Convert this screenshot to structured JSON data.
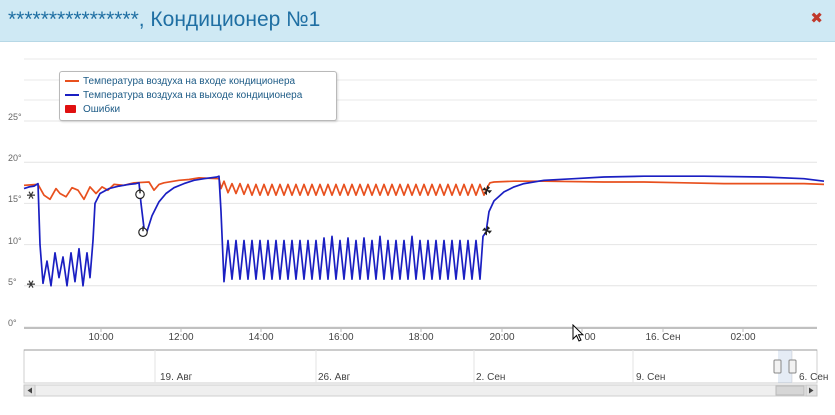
{
  "window": {
    "title": "****************, Кондиционер №1",
    "close_icon": "close-icon",
    "accent": "#1f6fa3",
    "header_bg": "#cfe9f4"
  },
  "legend": {
    "items": [
      {
        "label": "Температура воздуха на входе кондиционера",
        "color": "#e8501e",
        "kind": "line"
      },
      {
        "label": "Температура воздуха на выходе кондиционера",
        "color": "#1a1fc2",
        "kind": "line"
      },
      {
        "label": "Ошибки",
        "color": "#e01010",
        "kind": "box"
      }
    ]
  },
  "chart_data": {
    "type": "line",
    "y_ticks": [
      "0°",
      "5°",
      "10°",
      "15°",
      "20°",
      "25°"
    ],
    "ylim": [
      0,
      25
    ],
    "x_ticks": [
      "10:00",
      "12:00",
      "14:00",
      "16:00",
      "18:00",
      "20:00",
      "00",
      "16. Сен",
      "02:00"
    ],
    "series": [
      {
        "name": "Температура воздуха на входе кондиционера",
        "color": "#e8501e",
        "points": [
          [
            0,
            17.2
          ],
          [
            1.4,
            17.3
          ],
          [
            2,
            16.0
          ],
          [
            2.6,
            15.5
          ],
          [
            3.2,
            16.8
          ],
          [
            3.6,
            16.2
          ],
          [
            4.2,
            15.8
          ],
          [
            4.8,
            16.9
          ],
          [
            5.4,
            16.6
          ],
          [
            6,
            15.5
          ],
          [
            6.6,
            17.0
          ],
          [
            7.2,
            16.2
          ],
          [
            7.8,
            17.0
          ],
          [
            8.4,
            16.6
          ],
          [
            9,
            17.3
          ],
          [
            10,
            17.2
          ],
          [
            11,
            17.5
          ],
          [
            12.5,
            17.6
          ],
          [
            13,
            16.6
          ],
          [
            13.5,
            17.3
          ],
          [
            14,
            17.5
          ],
          [
            15.5,
            17.8
          ],
          [
            16.5,
            17.9
          ],
          [
            17.5,
            18.1
          ],
          [
            19.5,
            18.0
          ],
          [
            19.7,
            16.8
          ],
          [
            20,
            17.7
          ],
          [
            20.4,
            16.3
          ],
          [
            20.8,
            17.4
          ],
          [
            21.2,
            16.2
          ],
          [
            21.6,
            17.4
          ],
          [
            22,
            16.1
          ],
          [
            22.4,
            17.3
          ],
          [
            22.8,
            16.0
          ],
          [
            23.2,
            17.3
          ],
          [
            23.6,
            16.0
          ],
          [
            24,
            17.3
          ],
          [
            24.4,
            16.0
          ],
          [
            24.8,
            17.3
          ],
          [
            25.2,
            16.0
          ],
          [
            25.6,
            17.3
          ],
          [
            26,
            16.0
          ],
          [
            26.4,
            17.3
          ],
          [
            26.8,
            16.0
          ],
          [
            27.2,
            17.3
          ],
          [
            27.6,
            16.0
          ],
          [
            28,
            17.3
          ],
          [
            28.4,
            16.0
          ],
          [
            28.8,
            17.3
          ],
          [
            29.2,
            16.0
          ],
          [
            29.6,
            17.3
          ],
          [
            30,
            16.0
          ],
          [
            30.4,
            17.3
          ],
          [
            30.8,
            16.0
          ],
          [
            31.2,
            17.3
          ],
          [
            31.6,
            16.0
          ],
          [
            32,
            17.3
          ],
          [
            32.4,
            16.0
          ],
          [
            32.8,
            17.3
          ],
          [
            33.2,
            16.0
          ],
          [
            33.6,
            17.3
          ],
          [
            34,
            16.0
          ],
          [
            34.4,
            17.3
          ],
          [
            34.8,
            16.0
          ],
          [
            35.2,
            17.3
          ],
          [
            35.6,
            16.0
          ],
          [
            36,
            17.3
          ],
          [
            36.4,
            16.0
          ],
          [
            36.8,
            17.3
          ],
          [
            37.2,
            16.0
          ],
          [
            37.6,
            17.3
          ],
          [
            38,
            16.0
          ],
          [
            38.4,
            17.3
          ],
          [
            38.8,
            16.0
          ],
          [
            39.2,
            17.3
          ],
          [
            39.6,
            16.0
          ],
          [
            40,
            17.3
          ],
          [
            40.4,
            16.0
          ],
          [
            40.8,
            17.3
          ],
          [
            41.2,
            16.0
          ],
          [
            41.6,
            17.3
          ],
          [
            42,
            16.0
          ],
          [
            42.4,
            17.3
          ],
          [
            42.8,
            16.0
          ],
          [
            43.2,
            17.3
          ],
          [
            43.6,
            16.0
          ],
          [
            44,
            17.3
          ],
          [
            44.4,
            16.0
          ],
          [
            44.8,
            17.3
          ],
          [
            45.2,
            16.0
          ],
          [
            45.6,
            17.3
          ],
          [
            46,
            16.0
          ],
          [
            46.3,
            16.9
          ],
          [
            46.6,
            17.5
          ],
          [
            47,
            17.6
          ],
          [
            49,
            17.7
          ],
          [
            52,
            17.7
          ],
          [
            58,
            17.6
          ],
          [
            62,
            17.6
          ],
          [
            66,
            17.5
          ],
          [
            70,
            17.4
          ],
          [
            74,
            17.4
          ],
          [
            78,
            17.4
          ],
          [
            80,
            17.3
          ]
        ]
      },
      {
        "name": "Температура воздуха на выходе кондиционера",
        "color": "#1a1fc2",
        "points": [
          [
            0,
            16.8
          ],
          [
            0.5,
            17.0
          ],
          [
            1,
            17.1
          ],
          [
            1.4,
            17.4
          ],
          [
            1.6,
            10.0
          ],
          [
            1.9,
            5.3
          ],
          [
            2.3,
            8.0
          ],
          [
            2.7,
            5.0
          ],
          [
            3.1,
            9.0
          ],
          [
            3.5,
            6.0
          ],
          [
            3.9,
            8.5
          ],
          [
            4.3,
            5.0
          ],
          [
            4.7,
            9.0
          ],
          [
            5.1,
            5.5
          ],
          [
            5.5,
            9.5
          ],
          [
            5.9,
            5.0
          ],
          [
            6.3,
            9.0
          ],
          [
            6.6,
            6.0
          ],
          [
            6.9,
            10.5
          ],
          [
            7.1,
            15.0
          ],
          [
            7.6,
            16.2
          ],
          [
            8.5,
            16.8
          ],
          [
            9.5,
            17.1
          ],
          [
            10.5,
            17.3
          ],
          [
            11.2,
            17.4
          ],
          [
            11.5,
            17.5
          ],
          [
            11.7,
            15.0
          ],
          [
            12.0,
            12.0
          ],
          [
            12.3,
            11.6
          ],
          [
            12.8,
            13.5
          ],
          [
            13.5,
            15.2
          ],
          [
            14.2,
            16.2
          ],
          [
            15.0,
            16.9
          ],
          [
            16,
            17.4
          ],
          [
            17,
            17.8
          ],
          [
            18,
            18.0
          ],
          [
            19.3,
            18.2
          ],
          [
            19.5,
            18.3
          ],
          [
            19.7,
            14.0
          ],
          [
            20,
            5.5
          ],
          [
            20.4,
            10.5
          ],
          [
            20.8,
            5.8
          ],
          [
            21.2,
            10.5
          ],
          [
            21.6,
            5.8
          ],
          [
            22,
            10.5
          ],
          [
            22.4,
            5.8
          ],
          [
            22.8,
            10.5
          ],
          [
            23.2,
            5.8
          ],
          [
            23.6,
            10.5
          ],
          [
            24,
            5.8
          ],
          [
            24.4,
            10.5
          ],
          [
            24.8,
            5.8
          ],
          [
            25.2,
            10.5
          ],
          [
            25.6,
            5.8
          ],
          [
            26,
            10.5
          ],
          [
            26.4,
            5.8
          ],
          [
            26.8,
            10.5
          ],
          [
            27.2,
            5.8
          ],
          [
            27.6,
            10.5
          ],
          [
            28,
            5.8
          ],
          [
            28.4,
            10.5
          ],
          [
            28.8,
            5.8
          ],
          [
            29.2,
            10.5
          ],
          [
            29.6,
            5.8
          ],
          [
            30,
            10.8
          ],
          [
            30.4,
            5.8
          ],
          [
            30.8,
            11.0
          ],
          [
            31.2,
            5.8
          ],
          [
            31.6,
            10.5
          ],
          [
            32,
            5.8
          ],
          [
            32.4,
            10.8
          ],
          [
            32.8,
            5.8
          ],
          [
            33.2,
            10.5
          ],
          [
            33.6,
            5.8
          ],
          [
            34,
            10.8
          ],
          [
            34.4,
            5.8
          ],
          [
            34.8,
            10.5
          ],
          [
            35.2,
            5.8
          ],
          [
            35.6,
            11.0
          ],
          [
            36,
            5.8
          ],
          [
            36.4,
            10.5
          ],
          [
            36.8,
            5.8
          ],
          [
            37.2,
            10.5
          ],
          [
            37.6,
            5.8
          ],
          [
            38,
            10.5
          ],
          [
            38.4,
            5.8
          ],
          [
            38.8,
            11.0
          ],
          [
            39.2,
            5.8
          ],
          [
            39.6,
            10.5
          ],
          [
            40,
            5.8
          ],
          [
            40.4,
            10.5
          ],
          [
            40.8,
            5.8
          ],
          [
            41.2,
            10.5
          ],
          [
            41.6,
            5.8
          ],
          [
            42,
            10.5
          ],
          [
            42.4,
            5.8
          ],
          [
            42.8,
            10.5
          ],
          [
            43.2,
            5.8
          ],
          [
            43.6,
            10.5
          ],
          [
            44,
            5.8
          ],
          [
            44.4,
            10.5
          ],
          [
            44.8,
            5.8
          ],
          [
            45.2,
            10.5
          ],
          [
            45.6,
            5.8
          ],
          [
            45.9,
            11.0
          ],
          [
            46.2,
            11.5
          ],
          [
            46.5,
            14.0
          ],
          [
            47,
            15.3
          ],
          [
            48,
            16.4
          ],
          [
            49,
            17.0
          ],
          [
            50,
            17.4
          ],
          [
            52,
            17.8
          ],
          [
            55,
            18.0
          ],
          [
            58,
            18.2
          ],
          [
            62,
            18.3
          ],
          [
            68,
            18.3
          ],
          [
            74,
            18.2
          ],
          [
            78,
            18.0
          ],
          [
            80,
            17.7
          ]
        ]
      }
    ],
    "markers": [
      {
        "icon": "snowflake-icon",
        "x": 0.7,
        "y": 16.0
      },
      {
        "icon": "snowflake-icon",
        "x": 0.7,
        "y": 5.2
      },
      {
        "icon": "power-icon",
        "x": 11.6,
        "y": 16.1
      },
      {
        "icon": "power-icon",
        "x": 11.9,
        "y": 11.5
      },
      {
        "icon": "fan-icon",
        "x": 46.3,
        "y": 16.6
      },
      {
        "icon": "fan-icon",
        "x": 46.3,
        "y": 11.7
      }
    ]
  },
  "navigator": {
    "labels": [
      "19. Авг",
      "26. Авг",
      "2. Сен",
      "9. Сен",
      "6. Сен"
    ]
  }
}
